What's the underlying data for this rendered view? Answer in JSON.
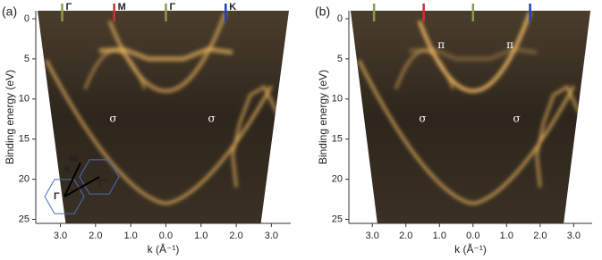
{
  "chart_data": [
    {
      "type": "image",
      "panel_label": "(a)",
      "xlabel": "k (Å⁻¹)",
      "ylabel": "Binding energy (eV)",
      "xlim": [
        -3.7,
        3.55
      ],
      "ylim": [
        -1,
        25.5
      ],
      "y_inverted": true,
      "xticks": [
        {
          "value": -3,
          "label": "3.0"
        },
        {
          "value": -2,
          "label": "2.0"
        },
        {
          "value": -1,
          "label": "1.0"
        },
        {
          "value": 0,
          "label": "0.0"
        },
        {
          "value": 1,
          "label": "1.0"
        },
        {
          "value": 2,
          "label": "2.0"
        },
        {
          "value": 3,
          "label": "3.0"
        }
      ],
      "yticks": [
        0,
        5,
        10,
        15,
        20,
        25
      ],
      "markers": [
        {
          "name": "Γ",
          "value": -2.95,
          "color": "#8a9a50"
        },
        {
          "name": "M",
          "value": -1.47,
          "color": "#d03030"
        },
        {
          "name": "Γ",
          "value": 0,
          "color": "#8a9a50"
        },
        {
          "name": "K",
          "value": 1.7,
          "color": "#2040c0"
        }
      ],
      "annotations": [
        "σ",
        "σ"
      ],
      "inset_labels": [
        "M",
        "K",
        "Γ",
        "Γ'"
      ]
    },
    {
      "type": "image",
      "panel_label": "(b)",
      "xlabel": "k (Å⁻¹)",
      "ylabel": "Binding energy (eV)",
      "xlim": [
        -3.7,
        3.55
      ],
      "ylim": [
        -1,
        25.5
      ],
      "y_inverted": true,
      "xticks": [
        {
          "value": -3,
          "label": "3.0"
        },
        {
          "value": -2,
          "label": "2.0"
        },
        {
          "value": -1,
          "label": "1.0"
        },
        {
          "value": 0,
          "label": "0.0"
        },
        {
          "value": 1,
          "label": "1.0"
        },
        {
          "value": 2,
          "label": "2.0"
        },
        {
          "value": 3,
          "label": "3.0"
        }
      ],
      "yticks": [
        0,
        5,
        10,
        15,
        20,
        25
      ],
      "markers": [
        {
          "value": -2.95,
          "color": "#8a9a50"
        },
        {
          "value": -1.47,
          "color": "#d03030"
        },
        {
          "value": 0,
          "color": "#8a9a50"
        },
        {
          "value": 1.7,
          "color": "#2040c0"
        }
      ],
      "annotations": [
        "π",
        "π",
        "σ",
        "σ"
      ]
    }
  ]
}
